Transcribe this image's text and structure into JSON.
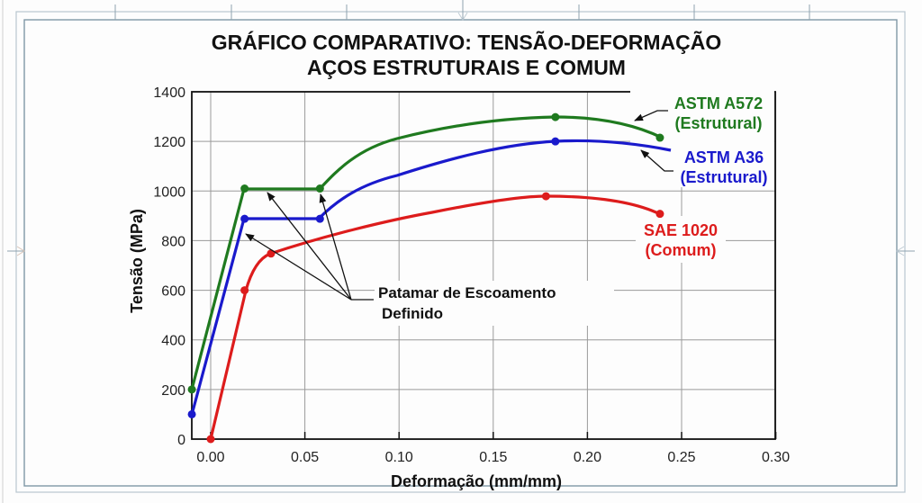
{
  "chart_data": {
    "type": "line",
    "title": "GRÁFICO COMPARATIVO: TENSÃO-DEFORMAÇÃO",
    "subtitle": "AÇOS ESTRUTURAIS E COMUM",
    "xlabel": "Deformação (mm/mm)",
    "ylabel": "Tensão (MPa)",
    "xlim": [
      -0.01,
      0.3
    ],
    "ylim": [
      0,
      1400
    ],
    "grid": true,
    "x_ticks": [
      "0.00",
      "0.05",
      "0.10",
      "0.15",
      "0.20",
      "0.25",
      "0.30"
    ],
    "y_ticks": [
      "0",
      "200",
      "400",
      "600",
      "800",
      "1000",
      "1200",
      "1400"
    ],
    "series": [
      {
        "name": "ASTM A572 (Estrutural)",
        "label_line1": "ASTM A572",
        "label_line2": "(Estrutural)",
        "color": "#1f7a1f",
        "points": [
          [
            -0.01,
            200
          ],
          [
            0.018,
            1010
          ],
          [
            0.058,
            1010
          ],
          [
            0.1,
            1200
          ],
          [
            0.183,
            1298
          ],
          [
            0.2385,
            1215
          ]
        ],
        "markers": [
          [
            -0.01,
            200
          ],
          [
            0.018,
            1010
          ],
          [
            0.058,
            1010
          ],
          [
            0.183,
            1298
          ],
          [
            0.2385,
            1215
          ]
        ]
      },
      {
        "name": "ASTM A36 (Estrutural)",
        "label_line1": "ASTM A36",
        "label_line2": "(Estrutural)",
        "color": "#1a1acc",
        "points": [
          [
            -0.01,
            100
          ],
          [
            0.018,
            888
          ],
          [
            0.058,
            888
          ],
          [
            0.1,
            1060
          ],
          [
            0.183,
            1200
          ],
          [
            0.244,
            1164
          ]
        ],
        "markers": [
          [
            -0.01,
            100
          ],
          [
            0.018,
            888
          ],
          [
            0.058,
            888
          ],
          [
            0.183,
            1200
          ]
        ]
      },
      {
        "name": "SAE 1020 (Comum)",
        "label_line1": "SAE 1020",
        "label_line2": "(Comum)",
        "color": "#dd1c1c",
        "points": [
          [
            0.0,
            0
          ],
          [
            0.018,
            600
          ],
          [
            0.032,
            748
          ],
          [
            0.1,
            900
          ],
          [
            0.178,
            979
          ],
          [
            0.2385,
            908
          ]
        ],
        "markers": [
          [
            0.0,
            0
          ],
          [
            0.018,
            600
          ],
          [
            0.032,
            748
          ],
          [
            0.178,
            979
          ],
          [
            0.2385,
            908
          ]
        ]
      }
    ],
    "annotations": [
      {
        "text_line1": "Patamar de Escoamento",
        "text_line2": "Definido",
        "points_to": "yield plateaus of ASTM A572 and ASTM A36"
      }
    ]
  }
}
